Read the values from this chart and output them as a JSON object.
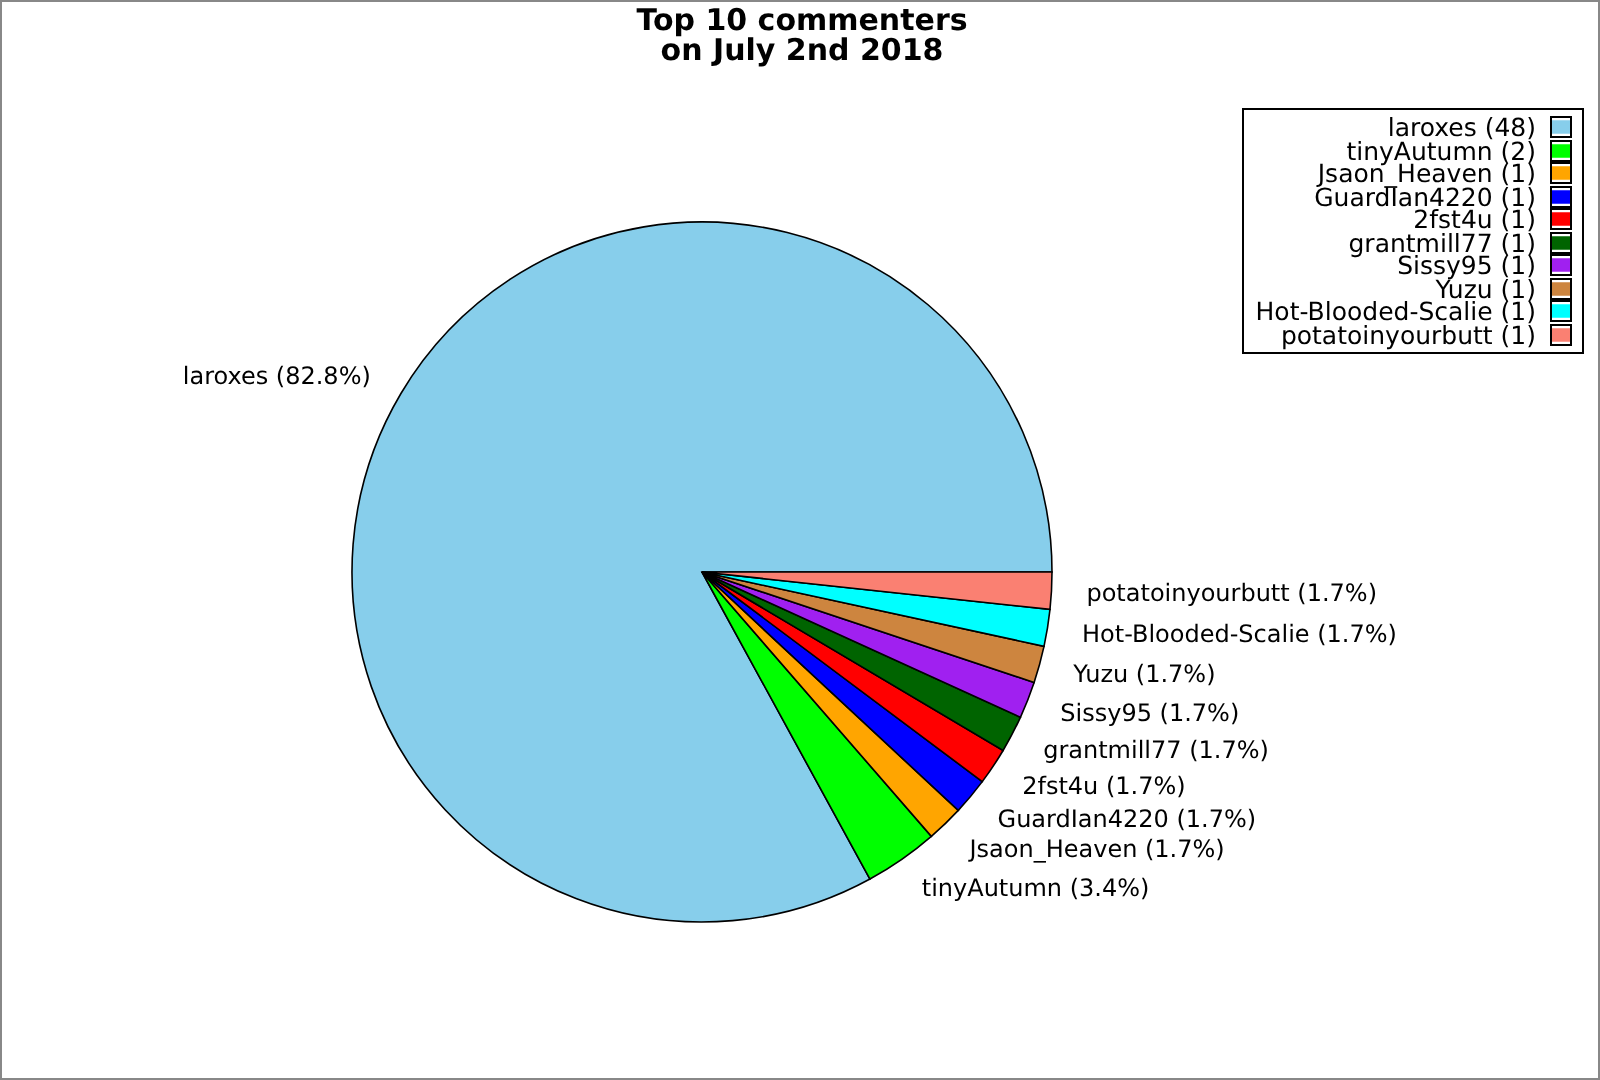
{
  "chart_data": {
    "type": "pie",
    "title": "Top 10 commenters\non July 2nd 2018",
    "categories": [
      "laroxes (48)",
      "tinyAutumn (2)",
      "Jsaon_Heaven (1)",
      "GuardIan4220 (1)",
      "2fst4u (1)",
      "grantmill77 (1)",
      "Sissy95 (1)",
      "Yuzu (1)",
      "Hot-Blooded-Scalie (1)",
      "potatoinyourbutt (1)"
    ],
    "values": [
      82.8,
      3.4,
      1.7,
      1.7,
      1.7,
      1.7,
      1.7,
      1.7,
      1.7,
      1.7
    ],
    "value_labels": [
      "laroxes (82.8%)",
      "tinyAutumn (3.4%)",
      "Jsaon_Heaven (1.7%)",
      "GuardIan4220 (1.7%)",
      "2fst4u (1.7%)",
      "grantmill77 (1.7%)",
      "Sissy95 (1.7%)",
      "Yuzu (1.7%)",
      "Hot-Blooded-Scalie (1.7%)",
      "potatoinyourbutt (1.7%)"
    ],
    "colors": [
      "#87ceeb",
      "#00ff00",
      "#ffa500",
      "#0000ff",
      "#ff0000",
      "#006400",
      "#a020f0",
      "#cd853f",
      "#00ffff",
      "#fa8072"
    ],
    "legend": "top right"
  }
}
